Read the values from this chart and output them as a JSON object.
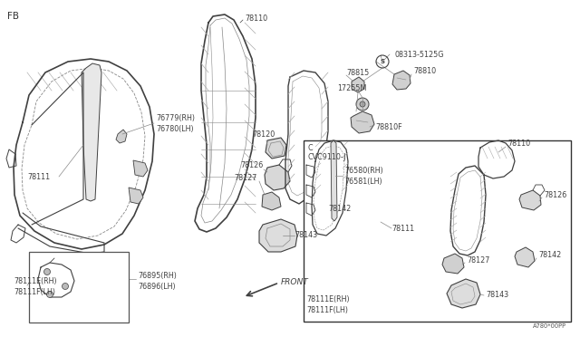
{
  "bg": "#ffffff",
  "lc": "#404040",
  "lc2": "#888888",
  "tc": "#404040",
  "fig_w": 6.4,
  "fig_h": 3.72,
  "dpi": 100,
  "fb": "FB",
  "code": "A780*00PP",
  "c_label": "C",
  "cvc_label": "CVC9110-J",
  "front": "FRONT",
  "hatch_color": "#aaaaaa",
  "inset_edge": "#555555",
  "inset_c_edge": "#333333"
}
